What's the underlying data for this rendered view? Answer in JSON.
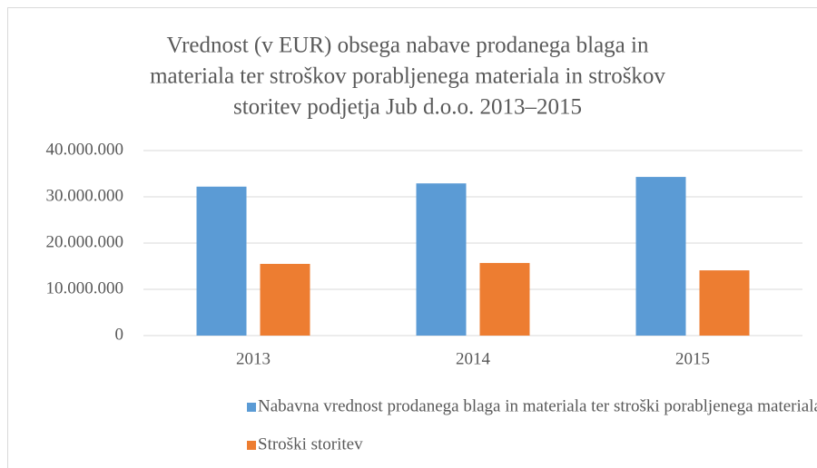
{
  "chart_data": {
    "type": "bar",
    "title": [
      "Vrednost (v EUR) obsega nabave prodanega blaga in",
      "materiala ter stroškov porabljenega materiala in stroškov",
      "storitev podjetja Jub d.o.o. 2013–2015"
    ],
    "categories": [
      "2013",
      "2014",
      "2015"
    ],
    "series": [
      {
        "name": "Nabavna vrednost prodanega blaga in materiala ter stroški porabljenega materiala",
        "color": "#5b9bd5",
        "values": [
          32200000,
          32900000,
          34300000
        ]
      },
      {
        "name": "Stroški storitev",
        "color": "#ed7d31",
        "values": [
          15500000,
          15700000,
          14100000
        ]
      }
    ],
    "ylim": [
      0,
      40000000
    ],
    "yticks": [
      0,
      {
        "value": 10000000,
        "label": "10.000.000"
      },
      {
        "value": 20000000,
        "label": "20.000.000"
      },
      {
        "value": 30000000,
        "label": "30.000.000"
      },
      {
        "value": 40000000,
        "label": "40.000.000"
      }
    ],
    "grid": true,
    "legend": "bottom"
  }
}
